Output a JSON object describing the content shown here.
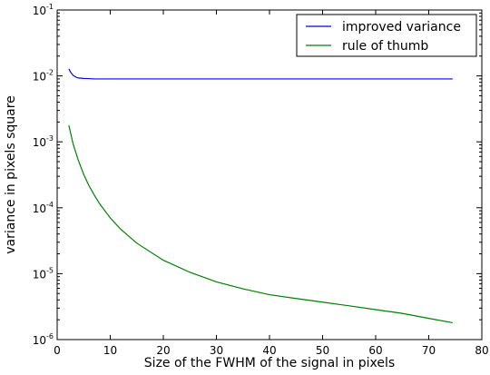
{
  "chart_data": {
    "type": "line",
    "xlabel": "Size of the FWHM of the signal in pixels",
    "ylabel": "variance in pixels square",
    "xlim": [
      0,
      80
    ],
    "ylim": [
      1e-06,
      0.1
    ],
    "yscale": "log",
    "grid": false,
    "legend_position": "top-right",
    "x_ticks": [
      "0",
      "10",
      "20",
      "30",
      "40",
      "50",
      "60",
      "70",
      "80"
    ],
    "y_ticks": [
      {
        "base": "10",
        "exp": "-6"
      },
      {
        "base": "10",
        "exp": "-5"
      },
      {
        "base": "10",
        "exp": "-4"
      },
      {
        "base": "10",
        "exp": "-3"
      },
      {
        "base": "10",
        "exp": "-2"
      },
      {
        "base": "10",
        "exp": "-1"
      }
    ],
    "series": [
      {
        "name": "improved variance",
        "color": "#0000ff",
        "x": [
          2.2,
          2.5,
          3,
          3.5,
          4,
          5,
          6,
          7,
          8,
          10,
          15,
          20,
          30,
          40,
          50,
          60,
          70,
          74.5
        ],
        "y": [
          0.0128,
          0.0115,
          0.0102,
          0.0096,
          0.0093,
          0.00915,
          0.0091,
          0.009,
          0.009,
          0.009,
          0.009,
          0.009,
          0.009,
          0.009,
          0.009,
          0.009,
          0.009,
          0.009
        ]
      },
      {
        "name": "rule of thumb",
        "color": "#008000",
        "x": [
          2.2,
          3,
          4,
          5,
          6,
          7,
          8,
          10,
          12,
          15,
          20,
          25,
          30,
          35,
          40,
          45,
          50,
          55,
          60,
          65,
          70,
          74.5
        ],
        "y": [
          0.00178,
          0.00093,
          0.00052,
          0.00032,
          0.000215,
          0.000155,
          0.000115,
          7e-05,
          4.7e-05,
          2.9e-05,
          1.6e-05,
          1.05e-05,
          7.5e-06,
          5.9e-06,
          4.8e-06,
          4.2e-06,
          3.7e-06,
          3.25e-06,
          2.85e-06,
          2.5e-06,
          2.1e-06,
          1.8e-06
        ]
      }
    ]
  }
}
